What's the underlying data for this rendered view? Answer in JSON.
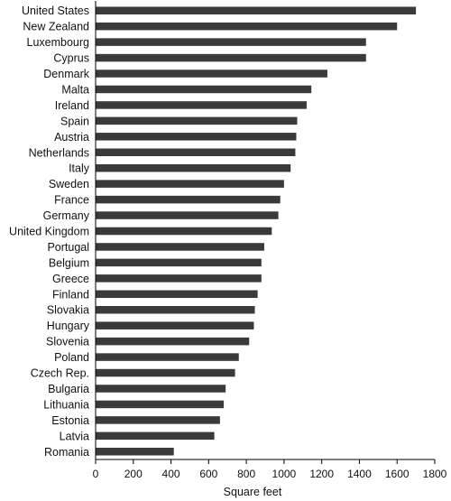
{
  "chart_data": {
    "type": "bar",
    "orientation": "horizontal",
    "categories": [
      "United States",
      "New Zealand",
      "Luxembourg",
      "Cyprus",
      "Denmark",
      "Malta",
      "Ireland",
      "Spain",
      "Austria",
      "Netherlands",
      "Italy",
      "Sweden",
      "France",
      "Germany",
      "United Kingdom",
      "Portugal",
      "Belgium",
      "Greece",
      "Finland",
      "Slovakia",
      "Hungary",
      "Slovenia",
      "Poland",
      "Czech Rep.",
      "Bulgaria",
      "Lithuania",
      "Estonia",
      "Latvia",
      "Romania"
    ],
    "values": [
      1700,
      1600,
      1435,
      1435,
      1230,
      1145,
      1120,
      1070,
      1065,
      1060,
      1035,
      1000,
      980,
      970,
      935,
      895,
      880,
      880,
      860,
      845,
      840,
      815,
      760,
      740,
      690,
      680,
      660,
      630,
      415
    ],
    "xlabel": "Square feet",
    "xlim": [
      0,
      1800
    ],
    "xticks": [
      "0",
      "200",
      "400",
      "600",
      "800",
      "1000",
      "1200",
      "1400",
      "1600",
      "1800"
    ],
    "grid": false,
    "bar_color": "#3a3a3a"
  }
}
